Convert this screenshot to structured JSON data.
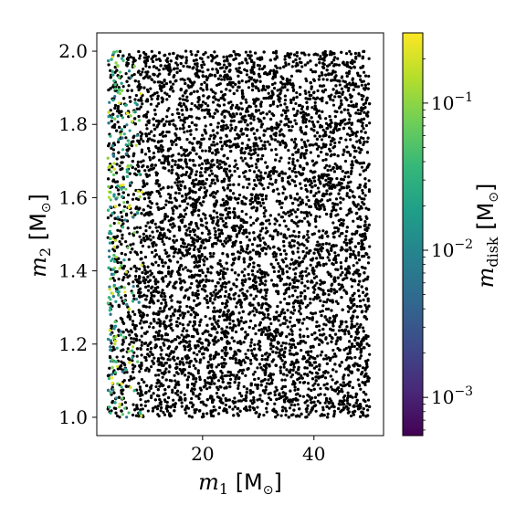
{
  "chart_data": {
    "type": "scatter",
    "xlabel": {
      "symbol": "m",
      "sub": "1",
      "unit_open": " [M",
      "unit_sub": "⊙",
      "unit_close": "]"
    },
    "ylabel": {
      "symbol": "m",
      "sub": "2",
      "unit_open": " [M",
      "unit_sub": "⊙",
      "unit_close": "]"
    },
    "xlim": [
      1.0,
      52.5
    ],
    "ylim": [
      0.95,
      2.05
    ],
    "xticks": [
      20,
      40
    ],
    "yticks": [
      1.0,
      1.2,
      1.4,
      1.6,
      1.8,
      2.0
    ],
    "xtick_labels": [
      "20",
      "40"
    ],
    "ytick_labels": [
      "1.0",
      "1.2",
      "1.4",
      "1.6",
      "1.8",
      "2.0"
    ],
    "sample_region": {
      "x": [
        3,
        50
      ],
      "y": [
        1.0,
        2.0
      ]
    },
    "point_count": 9000,
    "dominant_color": "#000000",
    "note_colored_points": "colored (nonzero disk mass) points appear only at low m1 (~3–10)",
    "colorbar": {
      "cmap": "viridis",
      "scale": "log",
      "range": [
        0.00055,
        0.3
      ],
      "label": {
        "symbol": "m",
        "sub": "disk",
        "unit_open": " [M",
        "unit_sub": "⊙",
        "unit_close": "]"
      },
      "ticks": [
        0.001,
        0.01,
        0.1
      ],
      "tick_labels": [
        {
          "base": "10",
          "exp": "−3"
        },
        {
          "base": "10",
          "exp": "−2"
        },
        {
          "base": "10",
          "exp": "−1"
        }
      ],
      "stops": [
        "#440154",
        "#482878",
        "#3e4a89",
        "#31688e",
        "#26828e",
        "#1f9e89",
        "#35b779",
        "#6ece58",
        "#b5de2b",
        "#fde725"
      ]
    },
    "grid": false
  }
}
